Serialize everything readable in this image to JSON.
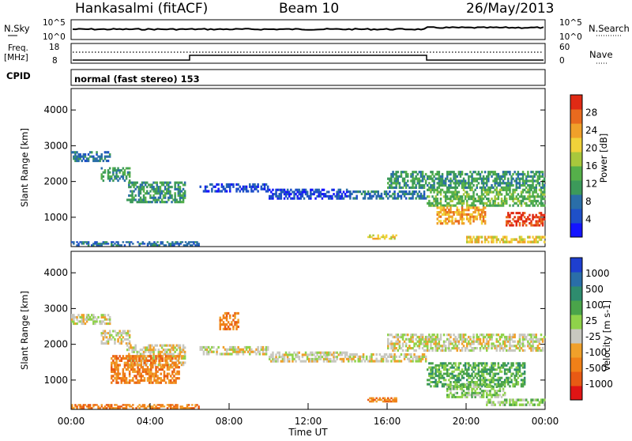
{
  "header": {
    "station": "Hankasalmi (fitACF)",
    "beam": "Beam 10",
    "date": "26/May/2013"
  },
  "noise_panel": {
    "left_label": "N.Sky",
    "right_label": "N.Search",
    "left_ticks": [
      "10^5",
      "10^0"
    ],
    "right_ticks": [
      "10^5",
      "10^0"
    ]
  },
  "freq_panel": {
    "left_label_1": "Freq.",
    "left_label_2": "[MHz]",
    "right_label": "Nave",
    "left_ticks": [
      "18",
      "8"
    ],
    "right_ticks": [
      "60",
      "0"
    ]
  },
  "cpid": {
    "label": "CPID",
    "mode": "normal (fast stereo) 153"
  },
  "chart_data": [
    {
      "type": "heatmap",
      "name": "power",
      "ylabel": "Slant Range [km]",
      "yticks": [
        1000,
        2000,
        3000,
        4000
      ],
      "ylim": [
        180,
        4600
      ],
      "xlim": [
        0,
        24
      ],
      "colorbar_label": "Power [dB]",
      "colorbar_ticks": [
        "4",
        "8",
        "12",
        "16",
        "20",
        "24",
        "28"
      ],
      "colors": [
        "#1414ff",
        "#1e50c8",
        "#2a6ea8",
        "#3c9a5a",
        "#55b04a",
        "#a8c83c",
        "#f0d23a",
        "#f0a02a",
        "#e86a1e",
        "#e02a14"
      ],
      "bands": [
        {
          "t": [
            0.0,
            2.0
          ],
          "r": [
            2550,
            2850
          ],
          "level": 2
        },
        {
          "t": [
            1.5,
            3.0
          ],
          "r": [
            2000,
            2400
          ],
          "level": 3
        },
        {
          "t": [
            2.8,
            5.8
          ],
          "r": [
            1400,
            2000
          ],
          "level": 3
        },
        {
          "t": [
            6.5,
            10.0
          ],
          "r": [
            1700,
            1950
          ],
          "level": 1
        },
        {
          "t": [
            10.0,
            14.0
          ],
          "r": [
            1500,
            1800
          ],
          "level": 1
        },
        {
          "t": [
            14.0,
            18.0
          ],
          "r": [
            1500,
            1750
          ],
          "level": 2
        },
        {
          "t": [
            16.0,
            24.0
          ],
          "r": [
            1800,
            2300
          ],
          "level": 3
        },
        {
          "t": [
            18.0,
            24.0
          ],
          "r": [
            1300,
            1800
          ],
          "level": 4
        },
        {
          "t": [
            18.5,
            21.0
          ],
          "r": [
            800,
            1300
          ],
          "level": 7
        },
        {
          "t": [
            22.0,
            24.0
          ],
          "r": [
            750,
            1150
          ],
          "level": 9
        },
        {
          "t": [
            0.0,
            6.5
          ],
          "r": [
            200,
            330
          ],
          "level": 2
        },
        {
          "t": [
            15.0,
            16.5
          ],
          "r": [
            380,
            520
          ],
          "level": 6
        },
        {
          "t": [
            20.0,
            24.0
          ],
          "r": [
            280,
            480
          ],
          "level": 6
        }
      ]
    },
    {
      "type": "heatmap",
      "name": "velocity",
      "ylabel": "Slant Range [km]",
      "yticks": [
        1000,
        2000,
        3000,
        4000
      ],
      "ylim": [
        180,
        4600
      ],
      "xlim": [
        0,
        24
      ],
      "colorbar_label": "Velocity [m s-1]",
      "colorbar_ticks": [
        "1000",
        "500",
        "100",
        "25",
        "-25",
        "-100",
        "-500",
        "-1000"
      ],
      "colors": [
        "#1e3fd0",
        "#2a6ea8",
        "#2e8c6e",
        "#4aa44a",
        "#8fd24a",
        "#c8c8c0",
        "#f0a02a",
        "#f08018",
        "#e85a14",
        "#e01414"
      ],
      "bands": [
        {
          "t": [
            0.0,
            2.0
          ],
          "r": [
            2550,
            2850
          ],
          "level": 5
        },
        {
          "t": [
            1.5,
            3.0
          ],
          "r": [
            2000,
            2400
          ],
          "level": 5
        },
        {
          "t": [
            2.8,
            5.8
          ],
          "r": [
            1400,
            2000
          ],
          "level": 5
        },
        {
          "t": [
            2.0,
            5.5
          ],
          "r": [
            900,
            1700
          ],
          "level": 7
        },
        {
          "t": [
            7.5,
            8.5
          ],
          "r": [
            2400,
            2900
          ],
          "level": 7
        },
        {
          "t": [
            6.5,
            10.0
          ],
          "r": [
            1700,
            1950
          ],
          "level": 5
        },
        {
          "t": [
            10.0,
            14.0
          ],
          "r": [
            1500,
            1800
          ],
          "level": 5
        },
        {
          "t": [
            14.0,
            18.0
          ],
          "r": [
            1500,
            1750
          ],
          "level": 5
        },
        {
          "t": [
            16.0,
            24.0
          ],
          "r": [
            1800,
            2300
          ],
          "level": 5
        },
        {
          "t": [
            18.0,
            23.0
          ],
          "r": [
            800,
            1500
          ],
          "level": 3
        },
        {
          "t": [
            19.0,
            22.0
          ],
          "r": [
            500,
            900
          ],
          "level": 4
        },
        {
          "t": [
            0.0,
            6.5
          ],
          "r": [
            200,
            330
          ],
          "level": 7
        },
        {
          "t": [
            15.0,
            16.5
          ],
          "r": [
            380,
            520
          ],
          "level": 7
        },
        {
          "t": [
            21.0,
            24.0
          ],
          "r": [
            280,
            480
          ],
          "level": 4
        }
      ]
    }
  ],
  "time_axis": {
    "ticks": [
      "00:00",
      "04:00",
      "08:00",
      "12:00",
      "16:00",
      "20:00",
      "00:00"
    ],
    "label": "Time UT"
  }
}
